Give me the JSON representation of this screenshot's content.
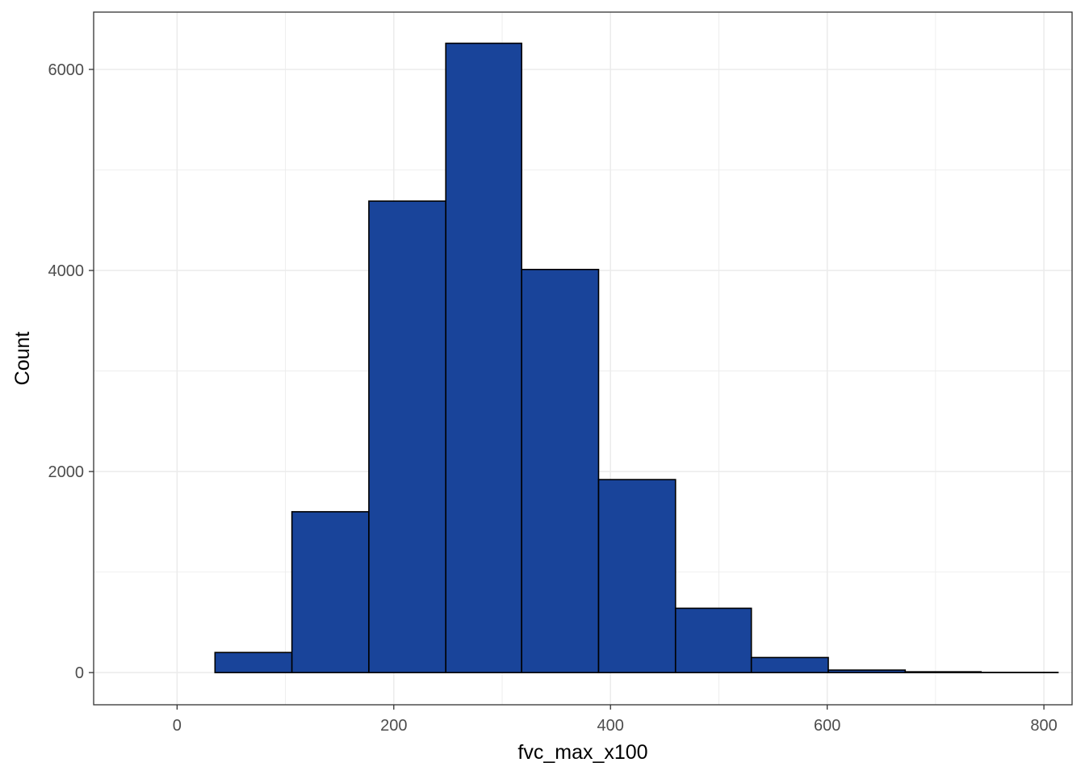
{
  "chart_data": {
    "type": "bar",
    "subtype": "histogram",
    "xlabel": "fvc_max_x100",
    "ylabel": "Count",
    "xlim": [
      -77,
      826
    ],
    "ylim": [
      -320,
      6570
    ],
    "x_ticks": [
      0,
      200,
      400,
      600,
      800
    ],
    "y_ticks": [
      0,
      2000,
      4000,
      6000
    ],
    "grid": true,
    "bar_color": "#19449A",
    "bar_edge_color": "#000000",
    "bins": [
      {
        "x0": -35,
        "x1": 35,
        "count": 0
      },
      {
        "x0": 35,
        "x1": 106,
        "count": 200
      },
      {
        "x0": 106,
        "x1": 177,
        "count": 1600
      },
      {
        "x0": 177,
        "x1": 248,
        "count": 4690
      },
      {
        "x0": 248,
        "x1": 318,
        "count": 6260
      },
      {
        "x0": 318,
        "x1": 389,
        "count": 4010
      },
      {
        "x0": 389,
        "x1": 460,
        "count": 1920
      },
      {
        "x0": 460,
        "x1": 530,
        "count": 640
      },
      {
        "x0": 530,
        "x1": 601,
        "count": 150
      },
      {
        "x0": 601,
        "x1": 672,
        "count": 25
      },
      {
        "x0": 672,
        "x1": 742,
        "count": 8
      },
      {
        "x0": 742,
        "x1": 813,
        "count": 2
      }
    ]
  }
}
